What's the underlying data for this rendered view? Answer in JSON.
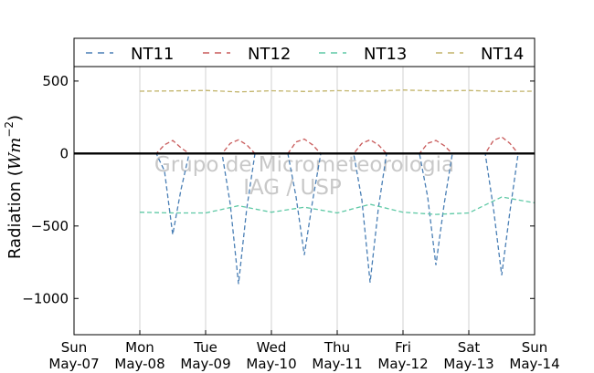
{
  "chart_data": {
    "type": "line",
    "ylabel": "Radiation ($Wm^{-2}$)",
    "ylabel_text": "Radiation (",
    "ylabel_unit_base": "Wm",
    "ylabel_unit_exp": "−2",
    "ylabel_close": ")",
    "ylim": [
      -1250,
      600
    ],
    "yticks": [
      500,
      0,
      -500,
      -1000
    ],
    "ytick_labels": [
      "500",
      "0",
      "−500",
      "−1000"
    ],
    "xlim": [
      "2017-05-07",
      "2017-05-14"
    ],
    "xticks": [
      {
        "day": "Sun",
        "date": "May-07"
      },
      {
        "day": "Mon",
        "date": "May-08"
      },
      {
        "day": "Tue",
        "date": "May-09"
      },
      {
        "day": "Wed",
        "date": "May-10"
      },
      {
        "day": "Thu",
        "date": "May-11"
      },
      {
        "day": "Fri",
        "date": "May-12"
      },
      {
        "day": "Sat",
        "date": "May-13"
      },
      {
        "day": "Sun",
        "date": "May-14"
      }
    ],
    "grid": "vertical",
    "legend_position": "top",
    "watermark": [
      "Grupo de Micrometeorologia",
      "IAG / USP"
    ],
    "series": [
      {
        "name": "NT11",
        "color": "#4a7fb5",
        "style": "dashed",
        "x": [
          "2017-05-08",
          "2017-05-08 06:00",
          "2017-05-08 09:00",
          "2017-05-08 12:00",
          "2017-05-08 15:00",
          "2017-05-08 18:00",
          "2017-05-09",
          "2017-05-09 06:00",
          "2017-05-09 09:00",
          "2017-05-09 12:00",
          "2017-05-09 15:00",
          "2017-05-09 18:00",
          "2017-05-10",
          "2017-05-10 06:00",
          "2017-05-10 09:00",
          "2017-05-10 12:00",
          "2017-05-10 15:00",
          "2017-05-10 18:00",
          "2017-05-11",
          "2017-05-11 06:00",
          "2017-05-11 09:00",
          "2017-05-11 12:00",
          "2017-05-11 15:00",
          "2017-05-11 18:00",
          "2017-05-12",
          "2017-05-12 06:00",
          "2017-05-12 09:00",
          "2017-05-12 12:00",
          "2017-05-12 15:00",
          "2017-05-12 18:00",
          "2017-05-13",
          "2017-05-13 06:00",
          "2017-05-13 09:00",
          "2017-05-13 12:00",
          "2017-05-13 15:00",
          "2017-05-13 18:00",
          "2017-05-14"
        ],
        "values": [
          0,
          0,
          -120,
          -560,
          -250,
          0,
          0,
          0,
          -350,
          -900,
          -380,
          0,
          0,
          0,
          -300,
          -700,
          -330,
          0,
          0,
          0,
          -320,
          -890,
          -380,
          0,
          0,
          0,
          -300,
          -770,
          -350,
          0,
          0,
          0,
          -380,
          -840,
          -400,
          0,
          0
        ]
      },
      {
        "name": "NT12",
        "color": "#c85a5a",
        "style": "dashed",
        "x": [
          "2017-05-08",
          "2017-05-08 06:00",
          "2017-05-08 09:00",
          "2017-05-08 12:00",
          "2017-05-08 15:00",
          "2017-05-08 18:00",
          "2017-05-09",
          "2017-05-09 06:00",
          "2017-05-09 09:00",
          "2017-05-09 12:00",
          "2017-05-09 15:00",
          "2017-05-09 18:00",
          "2017-05-10",
          "2017-05-10 06:00",
          "2017-05-10 09:00",
          "2017-05-10 12:00",
          "2017-05-10 15:00",
          "2017-05-10 18:00",
          "2017-05-11",
          "2017-05-11 06:00",
          "2017-05-11 09:00",
          "2017-05-11 12:00",
          "2017-05-11 15:00",
          "2017-05-11 18:00",
          "2017-05-12",
          "2017-05-12 06:00",
          "2017-05-12 09:00",
          "2017-05-12 12:00",
          "2017-05-12 15:00",
          "2017-05-12 18:00",
          "2017-05-13",
          "2017-05-13 06:00",
          "2017-05-13 09:00",
          "2017-05-13 12:00",
          "2017-05-13 15:00",
          "2017-05-13 18:00",
          "2017-05-14"
        ],
        "values": [
          0,
          0,
          60,
          90,
          40,
          0,
          0,
          0,
          70,
          95,
          60,
          0,
          0,
          0,
          80,
          100,
          60,
          0,
          0,
          0,
          70,
          95,
          60,
          0,
          0,
          0,
          70,
          90,
          55,
          0,
          0,
          0,
          90,
          115,
          70,
          0,
          0
        ]
      },
      {
        "name": "NT13",
        "color": "#5ec9a5",
        "style": "dashed",
        "x": [
          "2017-05-08",
          "2017-05-08 12:00",
          "2017-05-09",
          "2017-05-09 12:00",
          "2017-05-10",
          "2017-05-10 12:00",
          "2017-05-11",
          "2017-05-11 12:00",
          "2017-05-12",
          "2017-05-12 12:00",
          "2017-05-13",
          "2017-05-13 12:00",
          "2017-05-14"
        ],
        "values": [
          -405,
          -410,
          -410,
          -360,
          -405,
          -370,
          -410,
          -350,
          -405,
          -420,
          -410,
          -300,
          -340
        ]
      },
      {
        "name": "NT14",
        "color": "#c2b46a",
        "style": "dashed",
        "x": [
          "2017-05-08",
          "2017-05-08 12:00",
          "2017-05-09",
          "2017-05-09 12:00",
          "2017-05-10",
          "2017-05-10 12:00",
          "2017-05-11",
          "2017-05-11 12:00",
          "2017-05-12",
          "2017-05-12 12:00",
          "2017-05-13",
          "2017-05-13 12:00",
          "2017-05-14"
        ],
        "values": [
          430,
          432,
          435,
          425,
          433,
          428,
          434,
          430,
          438,
          432,
          435,
          428,
          430
        ]
      }
    ]
  }
}
